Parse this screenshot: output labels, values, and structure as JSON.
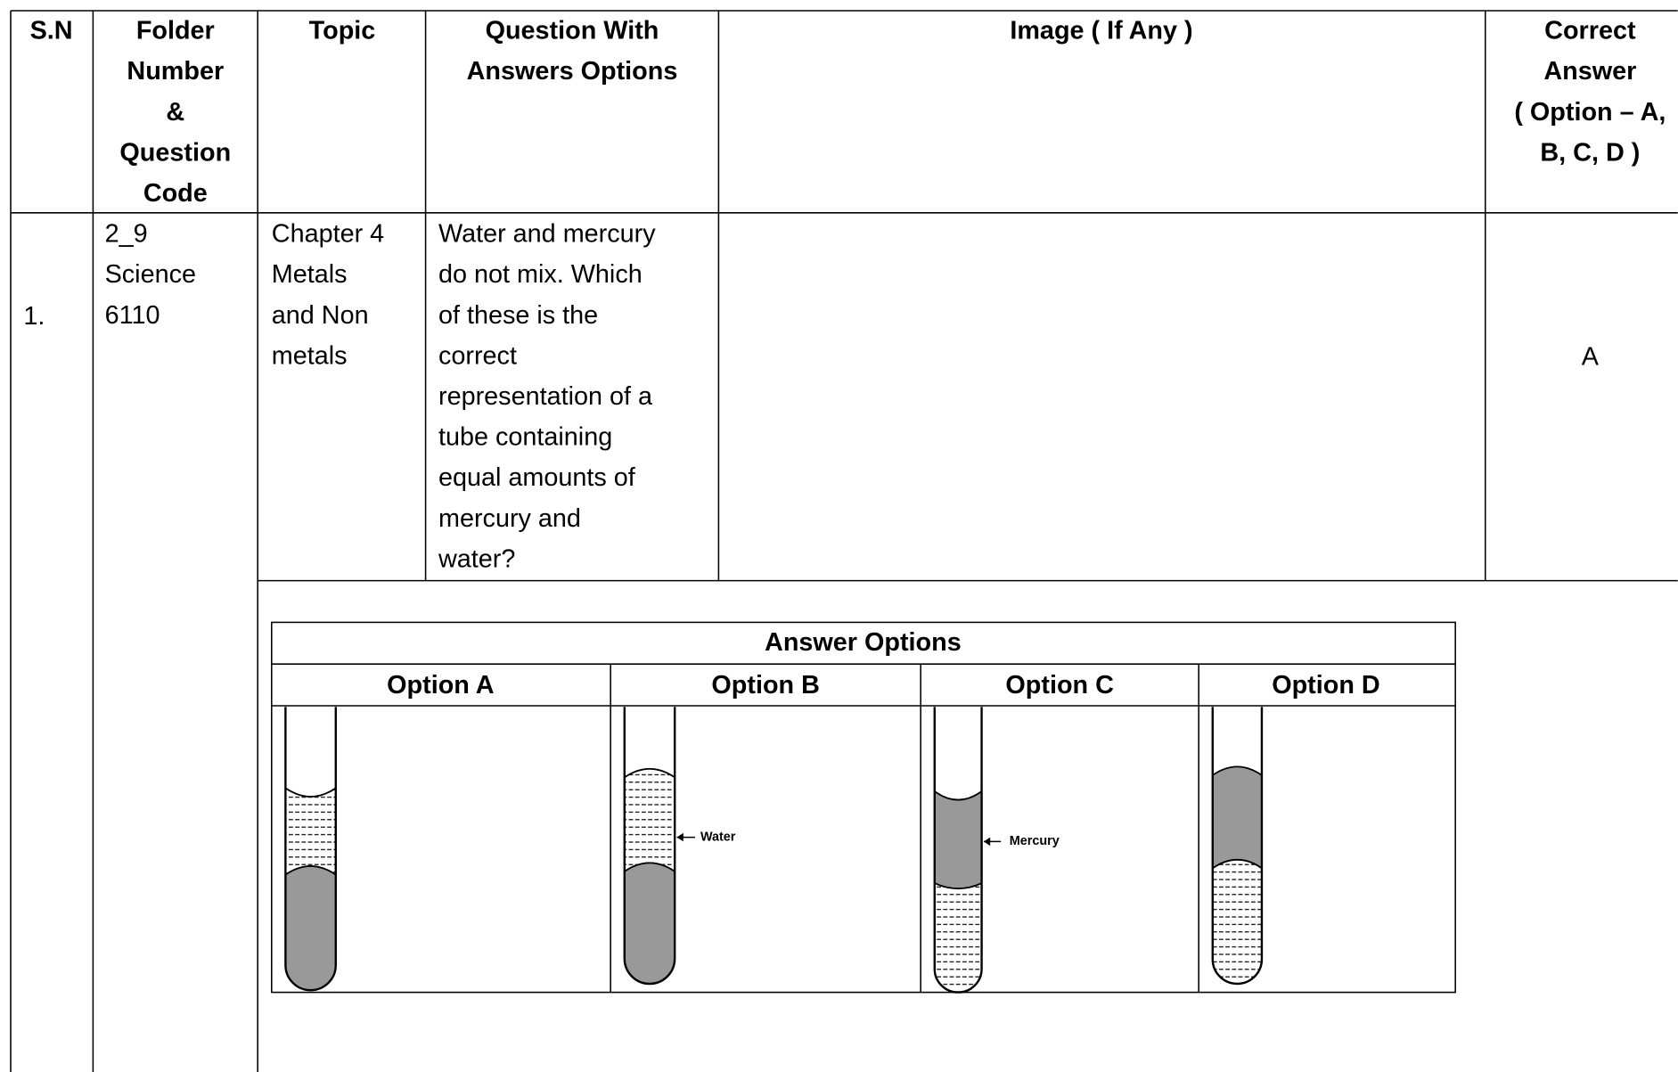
{
  "table": {
    "header": [
      [
        "S.N"
      ],
      [
        "Folder",
        "Number",
        "&",
        "Question",
        "Code"
      ],
      [
        "Topic"
      ],
      [
        "Question With",
        "Answers Options"
      ],
      [
        "Image ( If Any )"
      ],
      [
        "Correct",
        "Answer",
        "( Option – A,",
        "B, C, D )"
      ]
    ],
    "row": {
      "sn": "1.",
      "folder": [
        "2_9",
        "Science",
        "6110"
      ],
      "topic": [
        "Chapter 4",
        "Metals",
        "and Non",
        "metals"
      ],
      "question": [
        "Water and mercury",
        "do not mix. Which",
        "of these is the",
        "correct",
        "representation of a",
        "tube containing",
        "equal amounts of",
        "mercury and",
        "water?"
      ],
      "answer": "A"
    },
    "options": {
      "title": "Answer Options",
      "headers": [
        "Option A",
        "Option B",
        "Option C",
        "Option D"
      ],
      "labels": [
        "Water",
        "Mercury"
      ]
    }
  }
}
